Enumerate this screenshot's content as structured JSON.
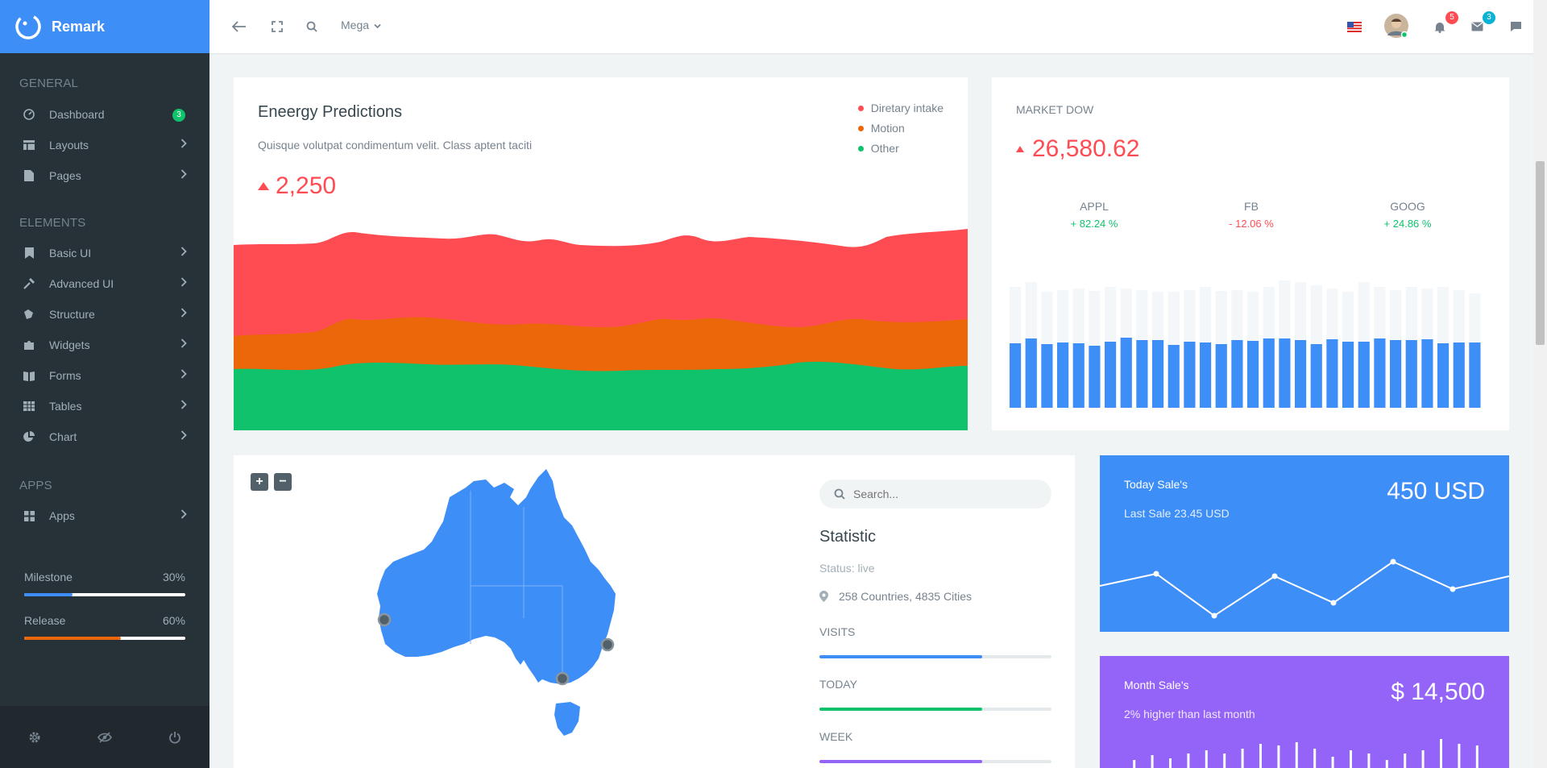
{
  "brand": {
    "name": "Remark"
  },
  "topbar": {
    "mega_label": "Mega",
    "notifications_count": "5",
    "messages_count": "3"
  },
  "sidebar": {
    "sections": [
      {
        "label": "GENERAL"
      },
      {
        "label": "ELEMENTS"
      },
      {
        "label": "APPS"
      }
    ],
    "items": [
      {
        "label": "Dashboard",
        "badge": "3"
      },
      {
        "label": "Layouts"
      },
      {
        "label": "Pages"
      },
      {
        "label": "Basic UI"
      },
      {
        "label": "Advanced UI"
      },
      {
        "label": "Structure"
      },
      {
        "label": "Widgets"
      },
      {
        "label": "Forms"
      },
      {
        "label": "Tables"
      },
      {
        "label": "Chart"
      },
      {
        "label": "Apps"
      }
    ],
    "progress": [
      {
        "label": "Milestone",
        "value": "30%",
        "fraction": 0.3,
        "color": "#3e8ef7"
      },
      {
        "label": "Release",
        "value": "60%",
        "fraction": 0.6,
        "color": "#eb6709"
      }
    ]
  },
  "energy": {
    "title": "Eneergy Predictions",
    "subtitle": "Quisque volutpat condimentum velit. Class aptent taciti",
    "value": "2,250",
    "legend": [
      {
        "label": "Diretary intake",
        "color": "#ff4c52"
      },
      {
        "label": "Motion",
        "color": "#eb6709"
      },
      {
        "label": "Other",
        "color": "#11c26d"
      }
    ]
  },
  "market": {
    "title": "MARKET DOW",
    "value": "26,580.62",
    "stocks": [
      {
        "name": "APPL",
        "change": "+ 82.24 %",
        "color": "#11c26d"
      },
      {
        "name": "FB",
        "change": "- 12.06 %",
        "color": "#ff4c52"
      },
      {
        "name": "GOOG",
        "change": "+ 24.86 %",
        "color": "#11c26d"
      }
    ]
  },
  "map": {
    "zoom_in": "+",
    "zoom_out": "−"
  },
  "statistic": {
    "search_placeholder": "Search...",
    "title": "Statistic",
    "status": "Status: live",
    "location": "258 Countries, 4835 Cities",
    "bars": [
      {
        "label": "VISITS",
        "fraction": 0.7,
        "color": "#3e8ef7"
      },
      {
        "label": "TODAY",
        "fraction": 0.7,
        "color": "#11c26d"
      },
      {
        "label": "WEEK",
        "fraction": 0.7,
        "color": "#9463f7"
      }
    ]
  },
  "today_sale": {
    "title": "Today Sale's",
    "subtitle": "Last Sale 23.45 USD",
    "value": "450 USD",
    "color": "#3e8ef7"
  },
  "month_sale": {
    "title": "Month Sale's",
    "subtitle": "2% higher than last month",
    "value": "$ 14,500",
    "color": "#9463f7"
  }
}
